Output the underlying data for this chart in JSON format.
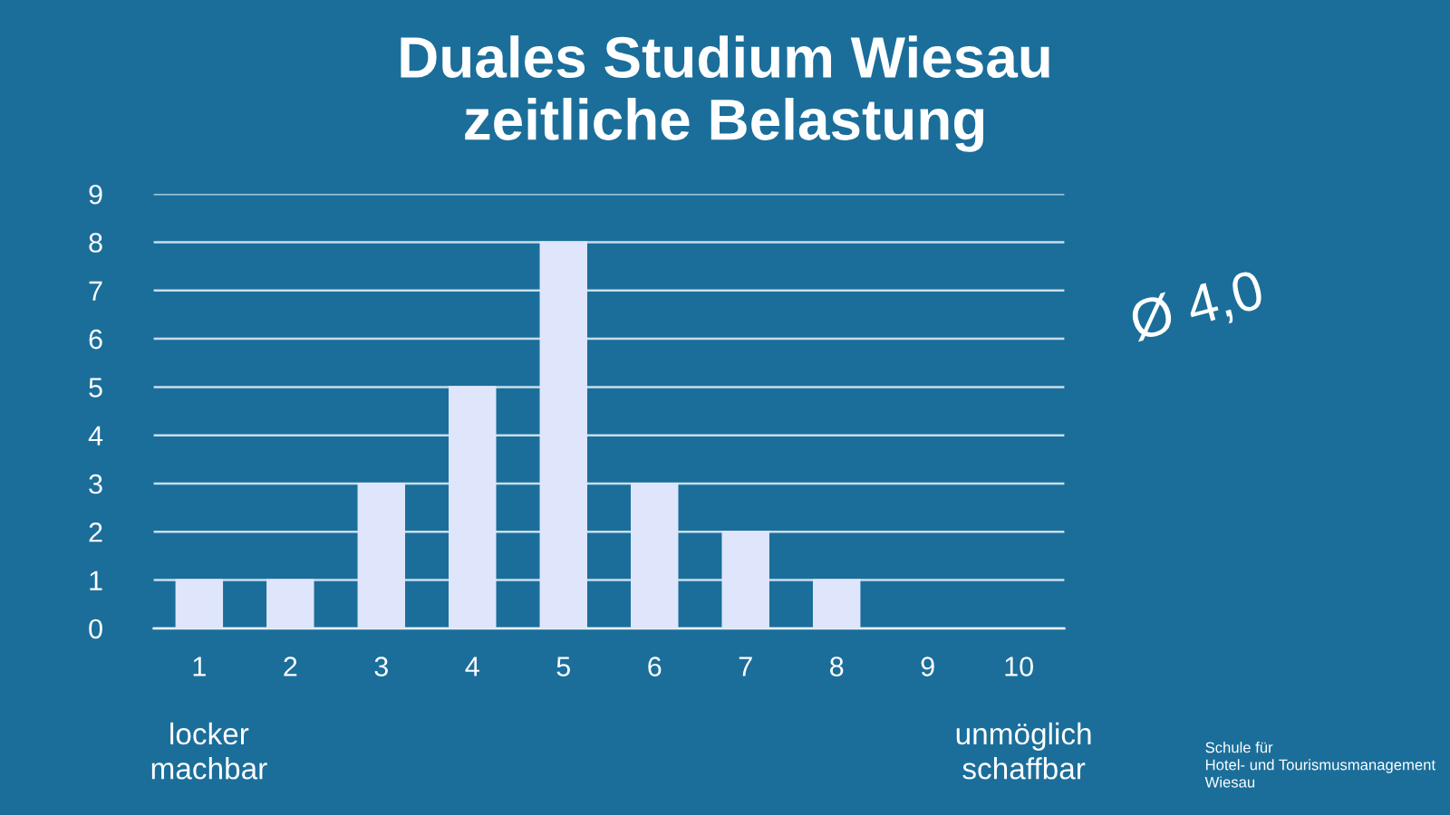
{
  "chart_data": {
    "type": "bar",
    "title": "Duales Studium Wiesau\nzeitliche Belastung",
    "categories": [
      "1",
      "2",
      "3",
      "4",
      "5",
      "6",
      "7",
      "8",
      "9",
      "10"
    ],
    "values": [
      1,
      1,
      3,
      5,
      8,
      3,
      2,
      1,
      0,
      0
    ],
    "color": "#dfe6fb",
    "ylim": [
      0,
      9
    ],
    "yticks": [
      0,
      1,
      2,
      3,
      4,
      5,
      6,
      7,
      8,
      9
    ],
    "grid": "y",
    "annotations": [
      "Ø 4,0",
      "locker\nmachbar",
      "unmöglich\nschaffbar",
      "Schule für\nHotel- und Tourismusmanagement\nWiesau"
    ]
  }
}
